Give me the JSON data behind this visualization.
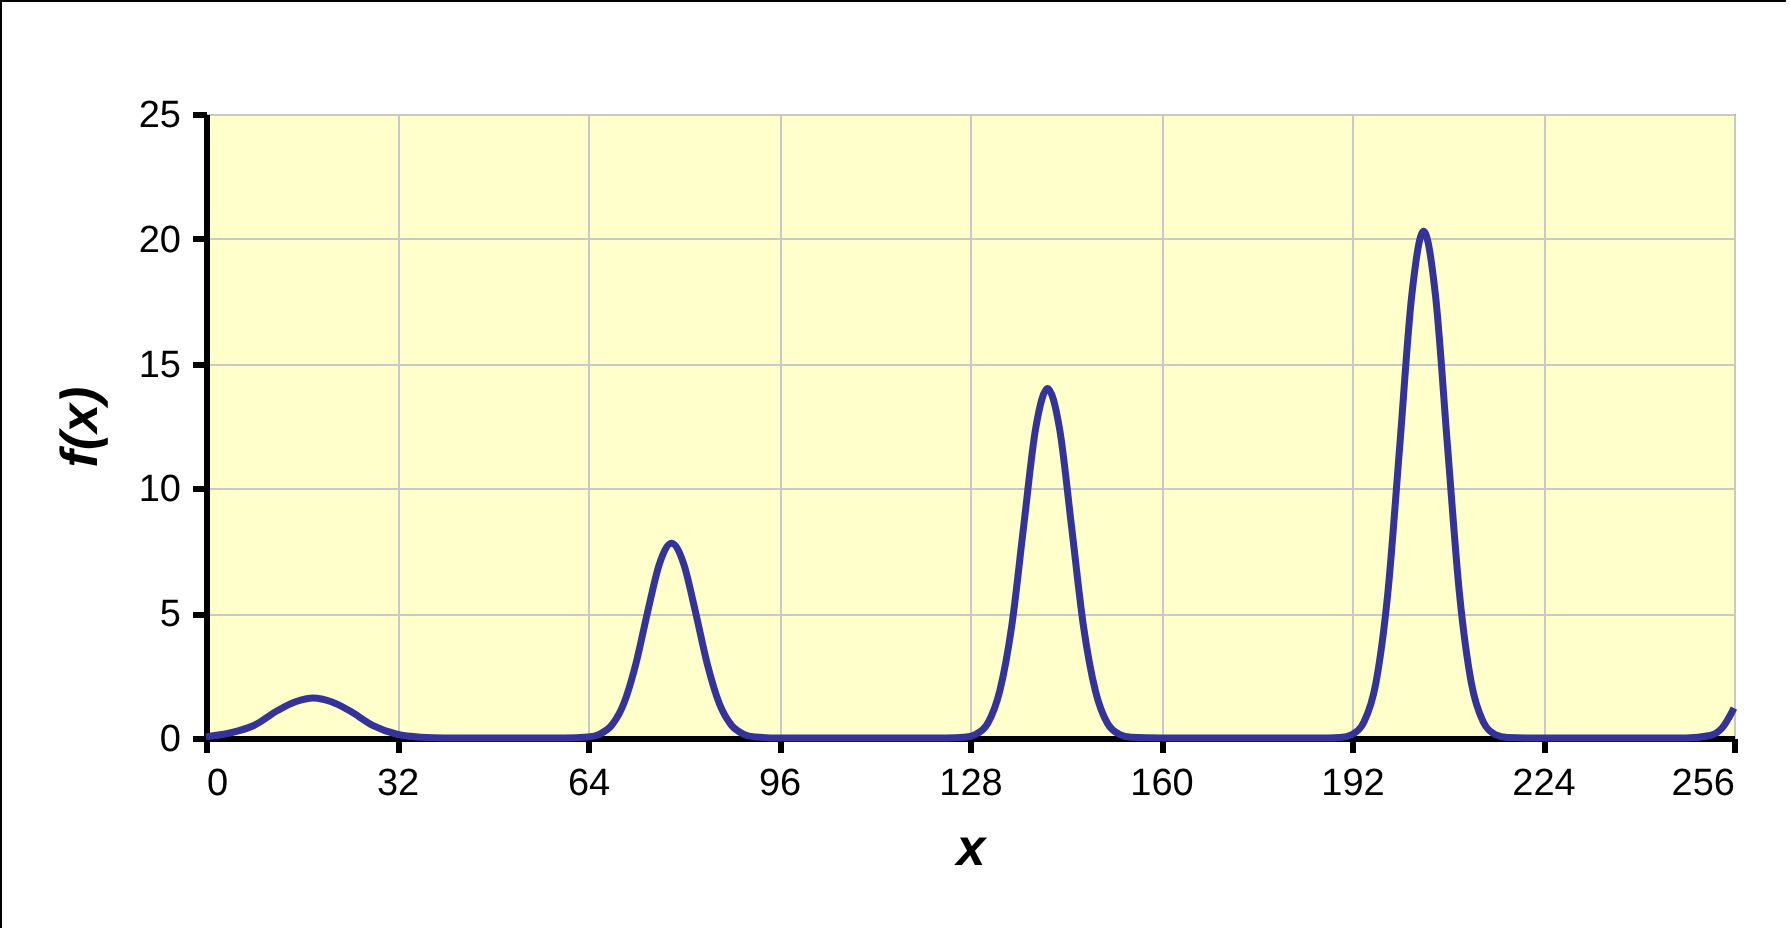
{
  "chart_data": {
    "type": "line",
    "xlabel": "x",
    "ylabel": "f(x)",
    "x": [
      0,
      4,
      8,
      12,
      15,
      18,
      21,
      24,
      28,
      32,
      36,
      40,
      60,
      64,
      66,
      68,
      70,
      72,
      74,
      76,
      78,
      80,
      82,
      84,
      86,
      88,
      90,
      92,
      96,
      124,
      127,
      129,
      131,
      133,
      135,
      137,
      139,
      141,
      143,
      145,
      147,
      149,
      151,
      153,
      155,
      160,
      188,
      190,
      192,
      194,
      196,
      198,
      200,
      202,
      204,
      206,
      208,
      210,
      212,
      214,
      216,
      218,
      222,
      248,
      252,
      254,
      256
    ],
    "series": [
      {
        "color": "#333399",
        "values": [
          0.05,
          0.2,
          0.5,
          1.1,
          1.45,
          1.6,
          1.45,
          1.1,
          0.5,
          0.15,
          0.03,
          0,
          0,
          0.04,
          0.16,
          0.52,
          1.38,
          2.95,
          5.06,
          7.0,
          7.8,
          7.0,
          5.06,
          2.95,
          1.38,
          0.52,
          0.16,
          0.04,
          0,
          0,
          0.03,
          0.15,
          0.6,
          1.9,
          4.5,
          8.5,
          12.4,
          14.0,
          12.4,
          8.5,
          4.5,
          1.9,
          0.6,
          0.15,
          0.03,
          0,
          0,
          0.02,
          0.14,
          0.64,
          2.2,
          5.8,
          11.7,
          17.7,
          20.3,
          17.7,
          11.7,
          5.8,
          2.2,
          0.64,
          0.14,
          0.02,
          0,
          0,
          0.1,
          0.4,
          1.2
        ]
      }
    ],
    "xlim": [
      0,
      256
    ],
    "xticks": [
      0,
      32,
      64,
      96,
      128,
      160,
      192,
      224,
      256
    ],
    "ylim": [
      0,
      25
    ],
    "yticks": [
      0,
      5,
      10,
      15,
      20,
      25
    ],
    "grid": true,
    "marker": "none",
    "line_style": "solid"
  }
}
